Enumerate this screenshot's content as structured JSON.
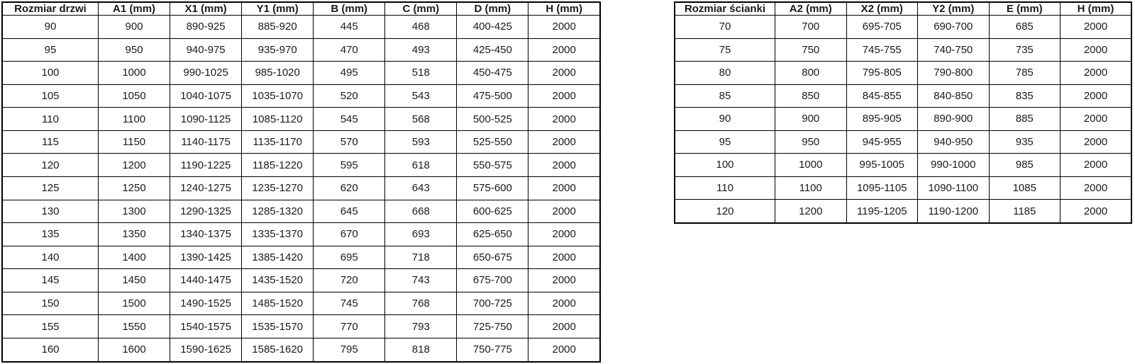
{
  "colors": {
    "background": "#ffffff",
    "border": "#000000",
    "text": "#1a1a1a"
  },
  "door_table": {
    "headers": [
      "Rozmiar drzwi",
      "A1 (mm)",
      "X1 (mm)",
      "Y1 (mm)",
      "B (mm)",
      "C (mm)",
      "D (mm)",
      "H (mm)"
    ],
    "rows": [
      [
        "90",
        "900",
        "890-925",
        "885-920",
        "445",
        "468",
        "400-425",
        "2000"
      ],
      [
        "95",
        "950",
        "940-975",
        "935-970",
        "470",
        "493",
        "425-450",
        "2000"
      ],
      [
        "100",
        "1000",
        "990-1025",
        "985-1020",
        "495",
        "518",
        "450-475",
        "2000"
      ],
      [
        "105",
        "1050",
        "1040-1075",
        "1035-1070",
        "520",
        "543",
        "475-500",
        "2000"
      ],
      [
        "110",
        "1100",
        "1090-1125",
        "1085-1120",
        "545",
        "568",
        "500-525",
        "2000"
      ],
      [
        "115",
        "1150",
        "1140-1175",
        "1135-1170",
        "570",
        "593",
        "525-550",
        "2000"
      ],
      [
        "120",
        "1200",
        "1190-1225",
        "1185-1220",
        "595",
        "618",
        "550-575",
        "2000"
      ],
      [
        "125",
        "1250",
        "1240-1275",
        "1235-1270",
        "620",
        "643",
        "575-600",
        "2000"
      ],
      [
        "130",
        "1300",
        "1290-1325",
        "1285-1320",
        "645",
        "668",
        "600-625",
        "2000"
      ],
      [
        "135",
        "1350",
        "1340-1375",
        "1335-1370",
        "670",
        "693",
        "625-650",
        "2000"
      ],
      [
        "140",
        "1400",
        "1390-1425",
        "1385-1420",
        "695",
        "718",
        "650-675",
        "2000"
      ],
      [
        "145",
        "1450",
        "1440-1475",
        "1435-1520",
        "720",
        "743",
        "675-700",
        "2000"
      ],
      [
        "150",
        "1500",
        "1490-1525",
        "1485-1520",
        "745",
        "768",
        "700-725",
        "2000"
      ],
      [
        "155",
        "1550",
        "1540-1575",
        "1535-1570",
        "770",
        "793",
        "725-750",
        "2000"
      ],
      [
        "160",
        "1600",
        "1590-1625",
        "1585-1620",
        "795",
        "818",
        "750-775",
        "2000"
      ]
    ]
  },
  "wall_table": {
    "headers": [
      "Rozmiar ścianki",
      "A2 (mm)",
      "X2 (mm)",
      "Y2 (mm)",
      "E (mm)",
      "H (mm)"
    ],
    "rows": [
      [
        "70",
        "700",
        "695-705",
        "690-700",
        "685",
        "2000"
      ],
      [
        "75",
        "750",
        "745-755",
        "740-750",
        "735",
        "2000"
      ],
      [
        "80",
        "800",
        "795-805",
        "790-800",
        "785",
        "2000"
      ],
      [
        "85",
        "850",
        "845-855",
        "840-850",
        "835",
        "2000"
      ],
      [
        "90",
        "900",
        "895-905",
        "890-900",
        "885",
        "2000"
      ],
      [
        "95",
        "950",
        "945-955",
        "940-950",
        "935",
        "2000"
      ],
      [
        "100",
        "1000",
        "995-1005",
        "990-1000",
        "985",
        "2000"
      ],
      [
        "110",
        "1100",
        "1095-1105",
        "1090-1100",
        "1085",
        "2000"
      ],
      [
        "120",
        "1200",
        "1195-1205",
        "1190-1200",
        "1185",
        "2000"
      ]
    ]
  }
}
